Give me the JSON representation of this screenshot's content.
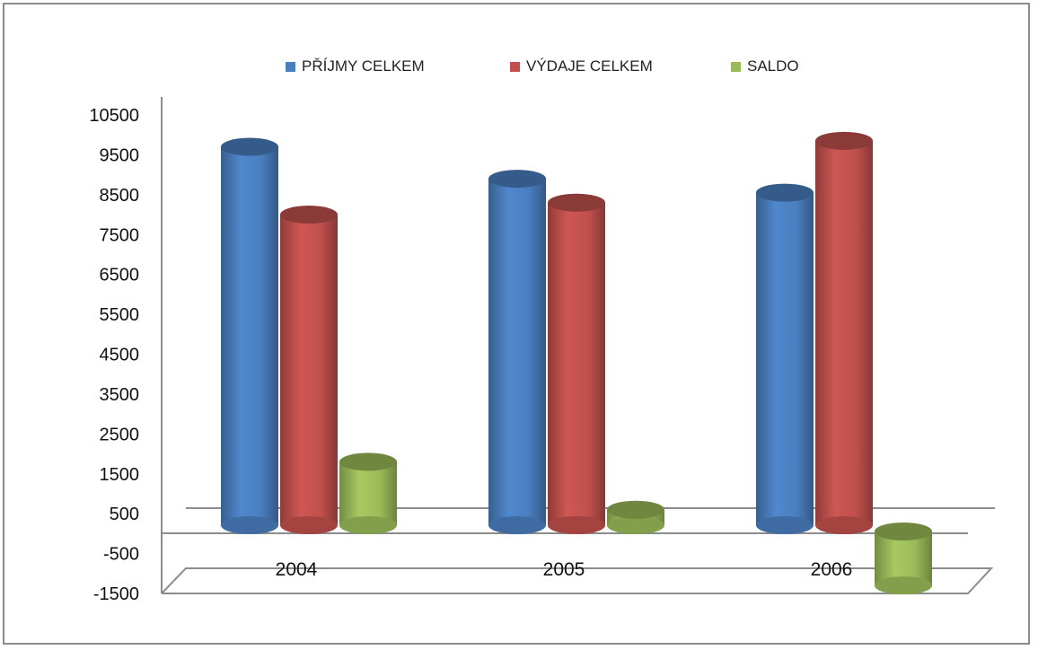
{
  "chart_data": {
    "type": "bar",
    "title": "",
    "xlabel": "",
    "ylabel": "",
    "categories": [
      "2004",
      "2005",
      "2006"
    ],
    "series": [
      {
        "name": "PŘÍJMY CELKEM",
        "values": [
          9700,
          8900,
          8550
        ],
        "color": "#4a7ebf"
      },
      {
        "name": "VÝDAJE CELKEM",
        "values": [
          8000,
          8300,
          9850
        ],
        "color": "#c0504d"
      },
      {
        "name": "SALDO",
        "values": [
          1800,
          600,
          -1300
        ],
        "color": "#9bbb59"
      }
    ],
    "ylim": [
      -1500,
      10500
    ],
    "yticks": [
      "10500",
      "9500",
      "8500",
      "7500",
      "6500",
      "5500",
      "4500",
      "3500",
      "2500",
      "1500",
      "500",
      "-500",
      "-1500"
    ],
    "grid": false,
    "legend_position": "top",
    "style": "3d-cylinder"
  }
}
